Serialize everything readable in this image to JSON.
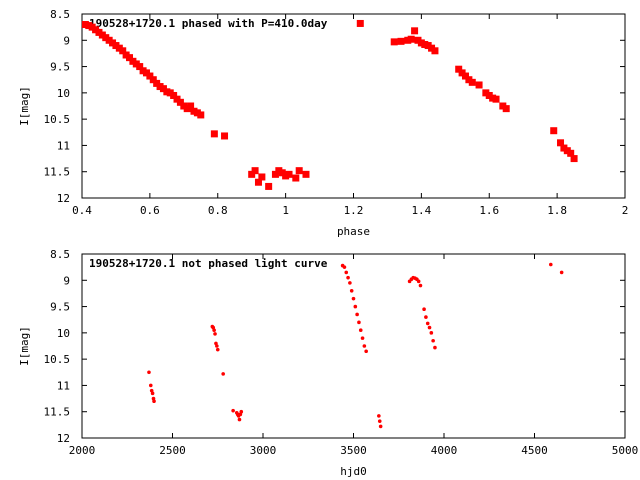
{
  "chart_data": [
    {
      "type": "scatter",
      "title": "190528+1720.1 phased with P=410.0day",
      "xlabel": "phase",
      "ylabel": "I[mag]",
      "xlim": [
        0.4,
        2.0
      ],
      "ylim": [
        8.5,
        12.0
      ],
      "y_inverted": true,
      "grid": false,
      "marker_color": "#ff0000",
      "marker": "filled-square",
      "xticks": [
        0.4,
        0.6,
        0.8,
        1.0,
        1.2,
        1.4,
        1.6,
        1.8,
        2.0
      ],
      "xtick_labels": [
        "0.4",
        "0.6",
        "0.8",
        "1",
        "1.2",
        "1.4",
        "1.6",
        "1.8",
        "2"
      ],
      "yticks": [
        8.5,
        9.0,
        9.5,
        10.0,
        10.5,
        11.0,
        11.5,
        12.0
      ],
      "ytick_labels": [
        "8.5",
        "9",
        "9.5",
        "10",
        "10.5",
        "11",
        "11.5",
        "12"
      ],
      "series": [
        {
          "x": [
            0.41,
            0.42,
            0.43,
            0.44,
            0.45,
            0.46,
            0.47,
            0.48,
            0.49,
            0.5,
            0.51,
            0.52,
            0.53,
            0.54,
            0.55,
            0.56,
            0.57,
            0.58,
            0.59,
            0.6,
            0.61,
            0.62,
            0.63,
            0.64,
            0.65,
            0.66,
            0.67,
            0.68,
            0.69,
            0.7,
            0.71,
            0.72,
            0.73,
            0.74,
            0.75,
            0.79,
            0.82,
            0.9,
            0.91,
            0.92,
            0.93,
            0.95,
            0.97,
            0.98,
            0.99,
            1.0,
            1.01,
            1.03,
            1.04,
            1.06,
            1.22,
            1.32,
            1.34,
            1.36,
            1.37,
            1.38,
            1.39,
            1.4,
            1.41,
            1.42,
            1.43,
            1.44,
            1.51,
            1.52,
            1.53,
            1.54,
            1.55,
            1.57,
            1.59,
            1.6,
            1.61,
            1.62,
            1.64,
            1.65,
            1.79,
            1.81,
            1.82,
            1.83,
            1.84,
            1.85
          ],
          "y": [
            8.7,
            8.72,
            8.75,
            8.8,
            8.85,
            8.9,
            8.95,
            9.0,
            9.05,
            9.1,
            9.15,
            9.2,
            9.28,
            9.33,
            9.4,
            9.45,
            9.5,
            9.58,
            9.62,
            9.68,
            9.75,
            9.82,
            9.88,
            9.92,
            9.98,
            10.0,
            10.05,
            10.12,
            10.18,
            10.25,
            10.3,
            10.25,
            10.35,
            10.38,
            10.42,
            10.78,
            10.82,
            11.55,
            11.48,
            11.7,
            11.6,
            11.78,
            11.55,
            11.48,
            11.52,
            11.58,
            11.55,
            11.62,
            11.48,
            11.55,
            8.68,
            9.03,
            9.02,
            9.0,
            8.98,
            8.82,
            9.0,
            9.05,
            9.08,
            9.1,
            9.15,
            9.2,
            9.55,
            9.62,
            9.68,
            9.75,
            9.8,
            9.85,
            10.0,
            10.05,
            10.1,
            10.12,
            10.25,
            10.3,
            10.72,
            10.95,
            11.05,
            11.1,
            11.15,
            11.25
          ]
        }
      ]
    },
    {
      "type": "scatter",
      "title": "190528+1720.1 not phased light curve",
      "xlabel": "hjd0",
      "ylabel": "I[mag]",
      "xlim": [
        2000,
        5000
      ],
      "ylim": [
        8.5,
        12.0
      ],
      "y_inverted": true,
      "grid": false,
      "marker_color": "#ff0000",
      "marker": "small-dot",
      "xticks": [
        2000,
        2500,
        3000,
        3500,
        4000,
        4500,
        5000
      ],
      "xtick_labels": [
        "2000",
        "2500",
        "3000",
        "3500",
        "4000",
        "4500",
        "5000"
      ],
      "yticks": [
        8.5,
        9.0,
        9.5,
        10.0,
        10.5,
        11.0,
        11.5,
        12.0
      ],
      "ytick_labels": [
        "8.5",
        "9",
        "9.5",
        "10",
        "10.5",
        "11",
        "11.5",
        "12"
      ],
      "series": [
        {
          "x": [
            2370,
            2380,
            2385,
            2390,
            2395,
            2398,
            2720,
            2725,
            2730,
            2735,
            2740,
            2745,
            2750,
            2780,
            2835,
            2855,
            2860,
            2865,
            2870,
            2875,
            2880,
            3440,
            3450,
            3460,
            3470,
            3480,
            3490,
            3500,
            3510,
            3520,
            3530,
            3540,
            3550,
            3560,
            3570,
            3640,
            3645,
            3650,
            3810,
            3820,
            3830,
            3840,
            3850,
            3860,
            3870,
            3890,
            3900,
            3910,
            3920,
            3930,
            3940,
            3950,
            4590,
            4650
          ],
          "y": [
            10.75,
            11.0,
            11.1,
            11.15,
            11.25,
            11.3,
            9.88,
            9.9,
            9.95,
            10.02,
            10.2,
            10.25,
            10.32,
            10.78,
            11.48,
            11.52,
            11.55,
            11.58,
            11.65,
            11.55,
            11.5,
            8.72,
            8.75,
            8.85,
            8.95,
            9.05,
            9.2,
            9.35,
            9.5,
            9.65,
            9.8,
            9.95,
            10.1,
            10.25,
            10.35,
            11.58,
            11.68,
            11.78,
            9.02,
            8.98,
            8.95,
            8.96,
            8.98,
            9.02,
            9.1,
            9.55,
            9.7,
            9.82,
            9.9,
            10.0,
            10.15,
            10.28,
            8.7,
            8.85
          ]
        }
      ]
    }
  ]
}
